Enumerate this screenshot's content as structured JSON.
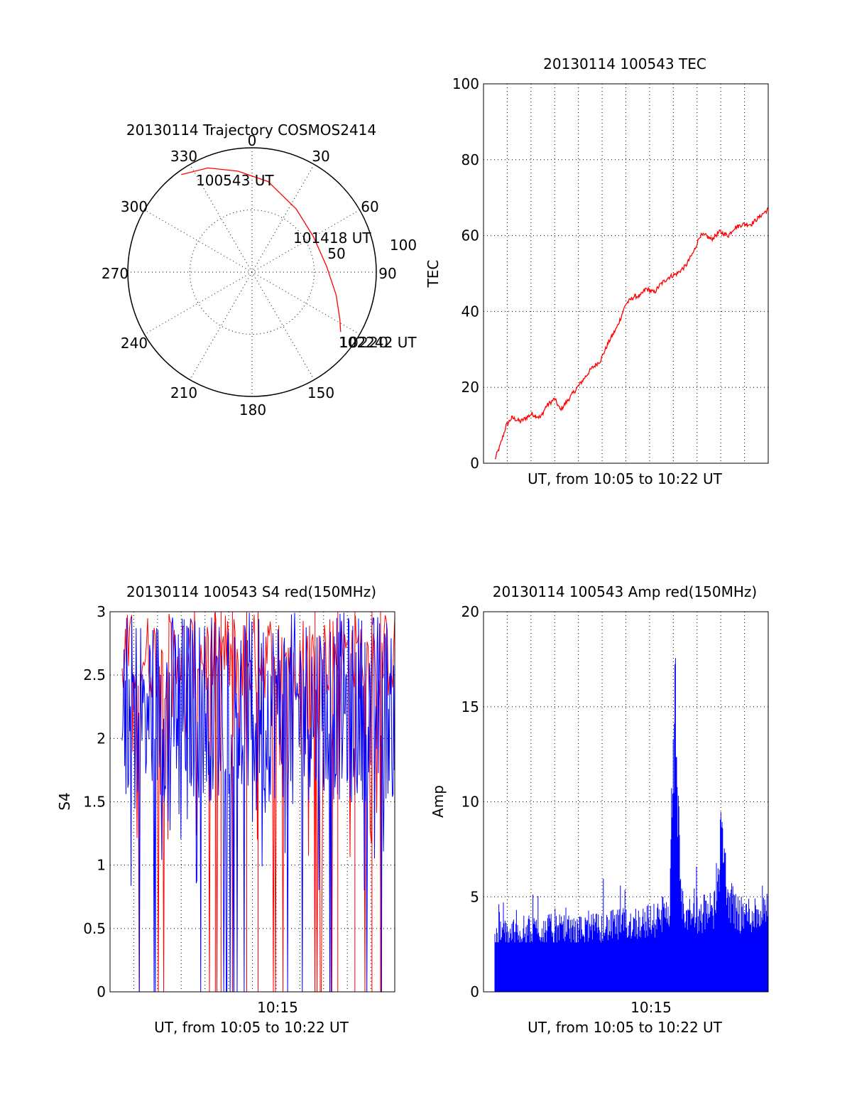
{
  "colors": {
    "red": "#ff0000",
    "blue": "#0000ff",
    "axis": "#000000",
    "background": "#ffffff"
  },
  "chart_data": [
    {
      "type": "polar",
      "title": "20130114 Trajectory COSMOS2414",
      "angle_labels": [
        "0",
        "30",
        "60",
        "90",
        "150",
        "180",
        "210",
        "240",
        "270",
        "300",
        "330"
      ],
      "radius_labels": [
        "50",
        "100"
      ],
      "rlim": [
        0,
        100
      ],
      "grid": true,
      "trajectory": [
        {
          "az": 324,
          "r": 97
        },
        {
          "az": 337,
          "r": 91
        },
        {
          "az": 352,
          "r": 82
        },
        {
          "az": 10,
          "r": 74
        },
        {
          "az": 35,
          "r": 62
        },
        {
          "az": 60,
          "r": 57
        },
        {
          "az": 85,
          "r": 60
        },
        {
          "az": 105,
          "r": 70
        },
        {
          "az": 118,
          "r": 80
        },
        {
          "az": 124,
          "r": 86
        }
      ],
      "annotations": [
        {
          "text": "100543 UT",
          "az": 330,
          "r": 90
        },
        {
          "text": "101418 UT",
          "az": 60,
          "r": 62
        },
        {
          "text": "102242 UT",
          "az": 125,
          "r": 86
        },
        {
          "text": "102242 UT",
          "az": 123,
          "r": 86
        }
      ]
    },
    {
      "type": "line",
      "title": "20130114 100543 TEC",
      "xlabel": "UT, from 10:05 to 10:22 UT",
      "ylabel": "TEC",
      "ylim": [
        0,
        100
      ],
      "yticks": [
        "0",
        "20",
        "40",
        "60",
        "80",
        "100"
      ],
      "xlim": [
        0,
        1
      ],
      "grid": true,
      "series": [
        {
          "color": "#ff0000",
          "x": [
            0.04,
            0.06,
            0.08,
            0.1,
            0.13,
            0.17,
            0.2,
            0.22,
            0.25,
            0.27,
            0.3,
            0.33,
            0.36,
            0.38,
            0.41,
            0.44,
            0.47,
            0.5,
            0.53,
            0.55,
            0.57,
            0.6,
            0.62,
            0.65,
            0.68,
            0.71,
            0.74,
            0.76,
            0.78,
            0.8,
            0.83,
            0.86,
            0.88,
            0.91,
            0.94,
            0.97,
            1.0
          ],
          "y": [
            1,
            5,
            10,
            12,
            11,
            13,
            12,
            15,
            17,
            14,
            17,
            20,
            23,
            25,
            27,
            32,
            36,
            42,
            44,
            44,
            46,
            45,
            47,
            49,
            50,
            52,
            56,
            60,
            60,
            59,
            61,
            60,
            62,
            63,
            63,
            65,
            67
          ]
        }
      ]
    },
    {
      "type": "line",
      "title": "20130114 100543 S4 red(150MHz)",
      "xlabel": "UT, from 10:05 to 10:22 UT",
      "ylabel": "S4",
      "ylim": [
        0,
        3
      ],
      "yticks": [
        "0",
        "0.5",
        "1",
        "1.5",
        "2",
        "2.5",
        "3"
      ],
      "xtick_labels": [
        "10:15"
      ],
      "grid": true,
      "series": [
        {
          "name": "",
          "color": "#0000ff",
          "pattern": "dense noise, mostly between 1.5 and 3 with frequent drops to 0"
        },
        {
          "name": "",
          "color": "#ff0000",
          "pattern": "sparse spikes from 3 down to 0"
        }
      ]
    },
    {
      "type": "bar",
      "title": "20130114 100543 Amp red(150MHz)",
      "xlabel": "UT, from 10:05 to 10:22 UT",
      "ylabel": "Amp",
      "ylim": [
        0,
        20
      ],
      "yticks": [
        "0",
        "5",
        "10",
        "15",
        "20"
      ],
      "xtick_labels": [
        "10:15"
      ],
      "grid": true,
      "series": [
        {
          "color": "#0000ff",
          "x": [
            0.0,
            0.1,
            0.2,
            0.3,
            0.4,
            0.5,
            0.6,
            0.64,
            0.66,
            0.68,
            0.7,
            0.8,
            0.83,
            0.85,
            0.9,
            1.0
          ],
          "y": [
            3.0,
            3.2,
            3.3,
            3.2,
            3.4,
            3.6,
            3.8,
            4.5,
            14.7,
            4.5,
            4.0,
            4.2,
            8.2,
            5.0,
            4.0,
            4.2
          ]
        }
      ]
    }
  ]
}
